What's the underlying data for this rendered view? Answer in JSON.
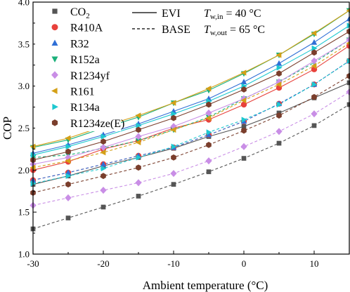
{
  "chart_data": {
    "type": "line",
    "xlabel": "Ambient temperature (°C)",
    "ylabel": "COP",
    "xlim": [
      -30,
      15
    ],
    "ylim": [
      1.0,
      4.0
    ],
    "xticks": [
      -30,
      -20,
      -10,
      0,
      10
    ],
    "yticks": [
      1.0,
      1.5,
      2.0,
      2.5,
      3.0,
      3.5,
      4.0
    ],
    "x": [
      -30,
      -25,
      -20,
      -15,
      -10,
      -5,
      0,
      5,
      10,
      15
    ],
    "line_styles": [
      {
        "label": "EVI",
        "dash": "solid"
      },
      {
        "label": "BASE",
        "dash": "dashed"
      }
    ],
    "annotations": [
      {
        "prefix": "T",
        "sub": "w,in",
        "suffix": " = 40 °C"
      },
      {
        "prefix": "T",
        "sub": "w,out",
        "suffix": " = 65 °C"
      }
    ],
    "series": [
      {
        "name": "CO2",
        "label_main": "CO",
        "label_sub": "2",
        "color": "#555555",
        "marker": "square",
        "evi": [
          1.83,
          1.93,
          2.05,
          2.15,
          2.26,
          2.4,
          2.52,
          2.68,
          2.86,
          3.04
        ],
        "base": [
          1.3,
          1.43,
          1.56,
          1.69,
          1.83,
          1.98,
          2.14,
          2.32,
          2.53,
          2.78
        ]
      },
      {
        "name": "R410A",
        "color": "#e8413b",
        "marker": "circle",
        "evi": [
          2.0,
          2.1,
          2.25,
          2.35,
          2.5,
          2.6,
          2.78,
          2.98,
          3.2,
          3.48
        ],
        "base": [
          1.88,
          1.97,
          2.07,
          2.17,
          2.27,
          2.42,
          2.58,
          2.79,
          3.02,
          3.3
        ]
      },
      {
        "name": "R32",
        "color": "#2f6fd6",
        "marker": "triangle-up",
        "evi": [
          2.2,
          2.3,
          2.42,
          2.55,
          2.7,
          2.85,
          3.05,
          3.27,
          3.52,
          3.8
        ],
        "base": [
          1.88,
          1.97,
          2.07,
          2.17,
          2.27,
          2.42,
          2.58,
          2.79,
          3.02,
          3.3
        ]
      },
      {
        "name": "R152a",
        "color": "#1bb07a",
        "marker": "triangle-down",
        "evi": [
          2.27,
          2.36,
          2.5,
          2.63,
          2.8,
          2.95,
          3.15,
          3.37,
          3.62,
          3.9
        ],
        "base": [
          2.15,
          2.18,
          2.26,
          2.35,
          2.48,
          2.63,
          2.85,
          3.05,
          3.28,
          3.55
        ]
      },
      {
        "name": "R1234yf",
        "color": "#c98ee6",
        "marker": "diamond",
        "evi": [
          2.07,
          2.15,
          2.27,
          2.4,
          2.52,
          2.68,
          2.85,
          3.05,
          3.3,
          3.55
        ],
        "base": [
          1.58,
          1.67,
          1.76,
          1.85,
          1.96,
          2.11,
          2.28,
          2.46,
          2.67,
          2.93
        ]
      },
      {
        "name": "R161",
        "color": "#d4a017",
        "marker": "triangle-left",
        "evi": [
          2.28,
          2.38,
          2.52,
          2.65,
          2.8,
          2.97,
          3.16,
          3.37,
          3.63,
          3.9
        ],
        "base": [
          2.03,
          2.11,
          2.21,
          2.33,
          2.48,
          2.62,
          2.83,
          3.02,
          3.24,
          3.51
        ]
      },
      {
        "name": "R134a",
        "color": "#1ec8d0",
        "marker": "triangle-right",
        "evi": [
          2.18,
          2.28,
          2.4,
          2.53,
          2.67,
          2.82,
          3.0,
          3.22,
          3.45,
          3.72
        ],
        "base": [
          1.84,
          1.93,
          2.02,
          2.15,
          2.28,
          2.45,
          2.6,
          2.78,
          3.02,
          3.3
        ]
      },
      {
        "name": "R1234ze(E)",
        "color": "#7a3e2c",
        "marker": "hexagon",
        "evi": [
          2.12,
          2.22,
          2.34,
          2.48,
          2.62,
          2.78,
          2.96,
          3.15,
          3.4,
          3.65
        ],
        "base": [
          1.73,
          1.83,
          1.93,
          2.03,
          2.15,
          2.3,
          2.47,
          2.65,
          2.87,
          3.12
        ]
      }
    ]
  }
}
